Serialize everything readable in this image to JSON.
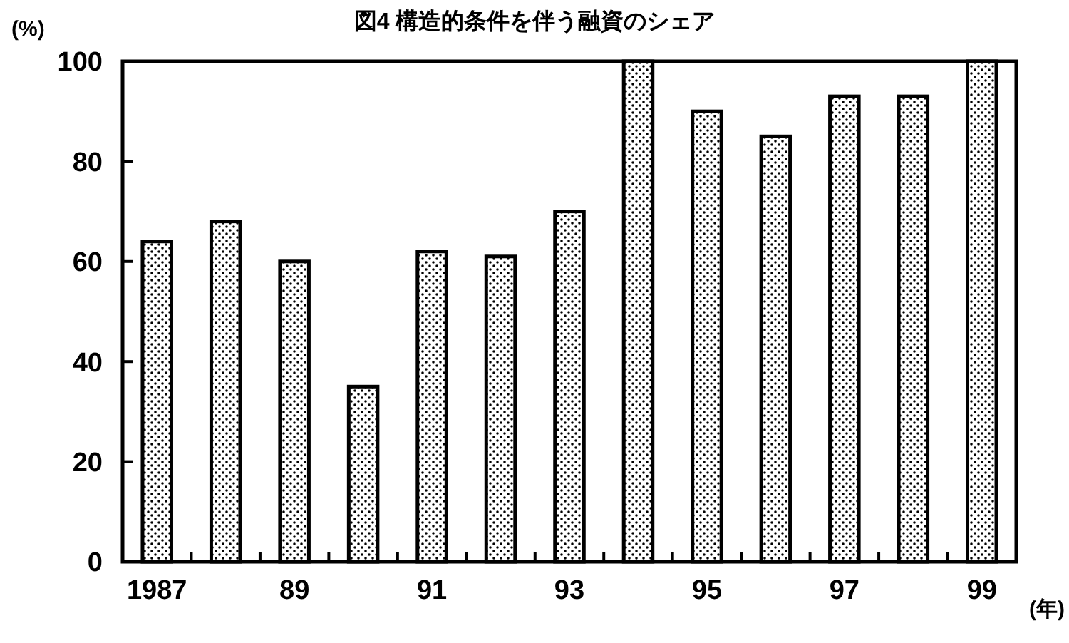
{
  "chart_data": {
    "type": "bar",
    "title": "図4 構造的条件を伴う融資のシェア",
    "xlabel": "(年)",
    "ylabel": "(%)",
    "categories": [
      "1987",
      null,
      "89",
      null,
      "91",
      null,
      "93",
      null,
      "95",
      null,
      "97",
      null,
      "99"
    ],
    "values": [
      64,
      68,
      60,
      35,
      62,
      61,
      70,
      100,
      90,
      85,
      93,
      93,
      100
    ],
    "color": "#000000",
    "ylim": [
      0,
      100
    ],
    "yticks": [
      0,
      20,
      40,
      60,
      80,
      100
    ],
    "grid": false
  }
}
